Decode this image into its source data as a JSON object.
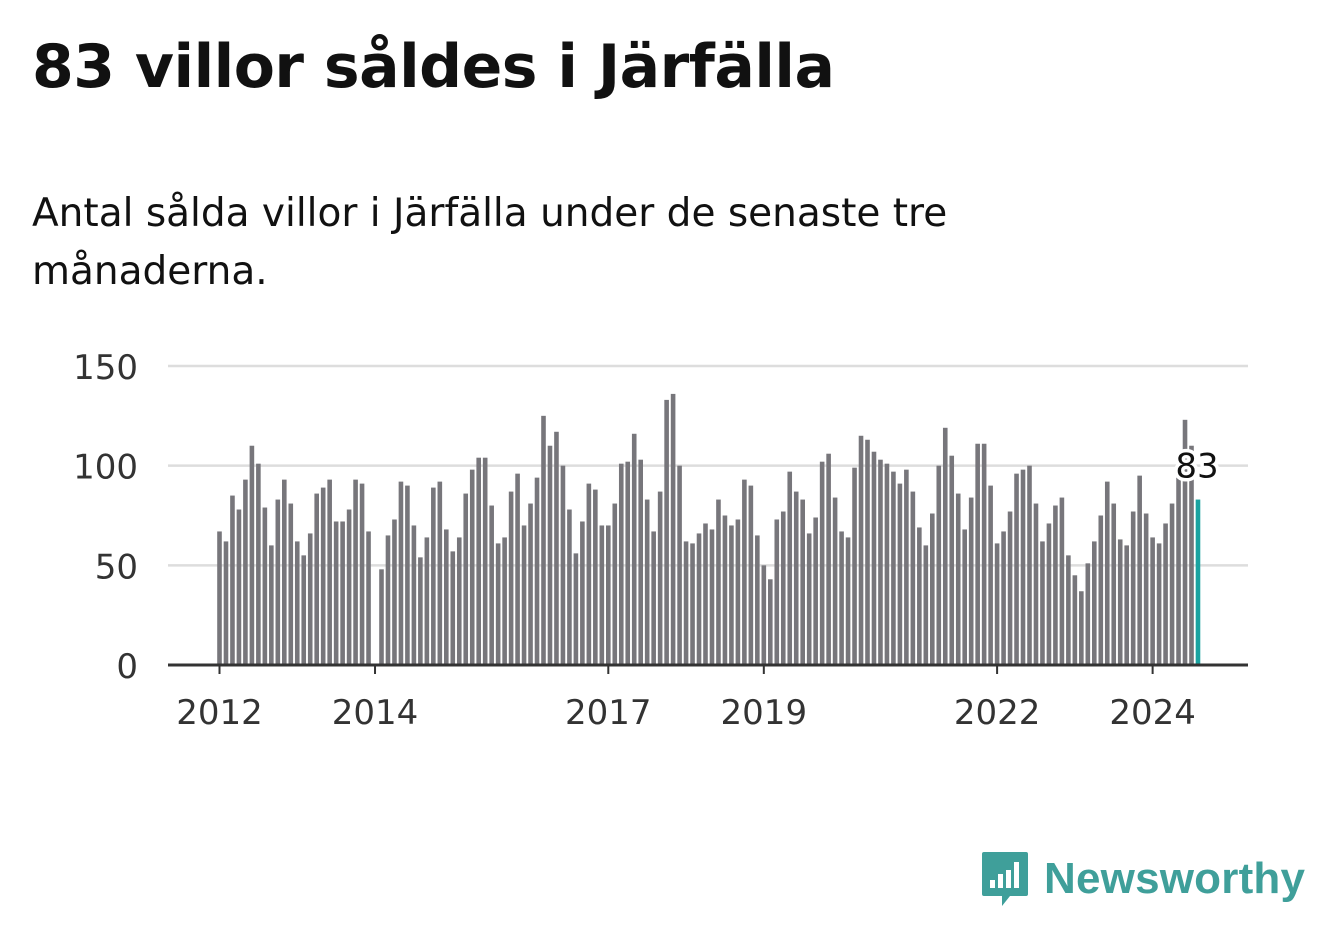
{
  "title": "83 villor såldes i Järfälla",
  "subtitle": "Antal sålda villor i Järfälla under de senaste tre månaderna.",
  "brand": {
    "name": "Newsworthy",
    "icon": "newsworthy-logo-icon"
  },
  "colors": {
    "bar": "#77767b",
    "highlight": "#1aa3a1",
    "grid": "#dddddd",
    "axis": "#333333",
    "brand": "#3f9f9a"
  },
  "chart_data": {
    "type": "bar",
    "title": "83 villor såldes i Järfälla",
    "xlabel": "",
    "ylabel": "",
    "ylim": [
      0,
      150
    ],
    "yticks": [
      0,
      50,
      100,
      150
    ],
    "ytick_labels": [
      "0",
      "50",
      "100",
      "150"
    ],
    "xticks": [
      {
        "label": "2012",
        "index": 0
      },
      {
        "label": "2014",
        "index": 24
      },
      {
        "label": "2017",
        "index": 60
      },
      {
        "label": "2019",
        "index": 84
      },
      {
        "label": "2022",
        "index": 120
      },
      {
        "label": "2024",
        "index": 144
      }
    ],
    "start": "2012-01",
    "highlight_index": 151,
    "highlight_label": "83",
    "grid": true,
    "values": [
      67,
      62,
      85,
      78,
      93,
      110,
      101,
      79,
      60,
      83,
      93,
      81,
      62,
      55,
      66,
      86,
      89,
      93,
      72,
      72,
      78,
      93,
      91,
      67,
      0,
      48,
      65,
      73,
      92,
      90,
      70,
      54,
      64,
      89,
      92,
      68,
      57,
      64,
      86,
      98,
      104,
      104,
      80,
      61,
      64,
      87,
      96,
      70,
      81,
      94,
      125,
      110,
      117,
      100,
      78,
      56,
      72,
      91,
      88,
      70,
      70,
      81,
      101,
      102,
      116,
      103,
      83,
      67,
      87,
      133,
      136,
      100,
      62,
      61,
      66,
      71,
      68,
      83,
      75,
      70,
      73,
      93,
      90,
      65,
      50,
      43,
      73,
      77,
      97,
      87,
      83,
      66,
      74,
      102,
      106,
      84,
      67,
      64,
      99,
      115,
      113,
      107,
      103,
      101,
      97,
      91,
      98,
      87,
      69,
      60,
      76,
      100,
      119,
      105,
      86,
      68,
      84,
      111,
      111,
      90,
      61,
      67,
      77,
      96,
      98,
      100,
      81,
      62,
      71,
      80,
      84,
      55,
      45,
      37,
      51,
      62,
      75,
      92,
      81,
      63,
      60,
      77,
      95,
      76,
      64,
      61,
      71,
      81,
      94,
      123,
      110,
      83
    ]
  }
}
